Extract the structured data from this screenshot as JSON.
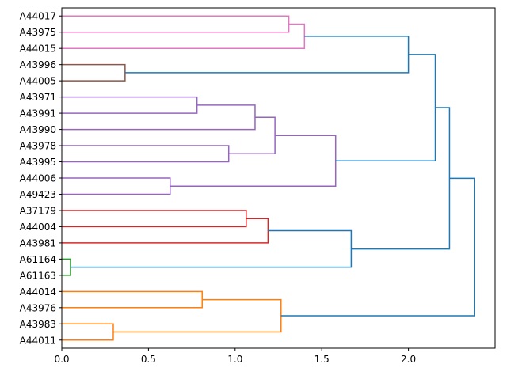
{
  "chart_data": {
    "type": "dendrogram",
    "title": "",
    "xlabel": "",
    "ylabel": "",
    "orientation": "left",
    "xlim": [
      0,
      2.5
    ],
    "xticks": [
      0.0,
      0.5,
      1.0,
      1.5,
      2.0
    ],
    "xtick_labels": [
      "0.0",
      "0.5",
      "1.0",
      "1.5",
      "2.0"
    ],
    "leaves": [
      "A44017",
      "A43975",
      "A44015",
      "A43996",
      "A44005",
      "A43971",
      "A43991",
      "A43990",
      "A43978",
      "A43995",
      "A44006",
      "A49423",
      "A37179",
      "A44004",
      "A43981",
      "A61164",
      "A61163",
      "A44014",
      "A43976",
      "A43983",
      "A44011"
    ],
    "colors": {
      "pink": "#e377c2",
      "brown": "#8c564b",
      "purple": "#9467bd",
      "red": "#d62728",
      "green": "#2ca02c",
      "orange": "#ff7f0e",
      "blue": "#1f77b4"
    },
    "merges": [
      {
        "id": "n1",
        "left": "A44017",
        "right": "A43975",
        "height": 1.31,
        "color": "pink"
      },
      {
        "id": "n2",
        "left": "n1",
        "right": "A44015",
        "height": 1.4,
        "color": "pink"
      },
      {
        "id": "n3",
        "left": "A43996",
        "right": "A44005",
        "height": 0.365,
        "color": "brown"
      },
      {
        "id": "n4",
        "left": "n2",
        "right": "n3",
        "height": 2.0,
        "color": "blue"
      },
      {
        "id": "n5",
        "left": "A43971",
        "right": "A43991",
        "height": 0.78,
        "color": "purple"
      },
      {
        "id": "n6",
        "left": "n5",
        "right": "A43990",
        "height": 1.115,
        "color": "purple"
      },
      {
        "id": "n7",
        "left": "A43978",
        "right": "A43995",
        "height": 0.963,
        "color": "purple"
      },
      {
        "id": "n8",
        "left": "n6",
        "right": "n7",
        "height": 1.23,
        "color": "purple"
      },
      {
        "id": "n9",
        "left": "A44006",
        "right": "A49423",
        "height": 0.625,
        "color": "purple"
      },
      {
        "id": "n10",
        "left": "n8",
        "right": "n9",
        "height": 1.58,
        "color": "purple"
      },
      {
        "id": "n11",
        "left": "n4",
        "right": "n10",
        "height": 2.155,
        "color": "blue"
      },
      {
        "id": "n12",
        "left": "A37179",
        "right": "A44004",
        "height": 1.064,
        "color": "red"
      },
      {
        "id": "n13",
        "left": "n12",
        "right": "A43981",
        "height": 1.19,
        "color": "red"
      },
      {
        "id": "n14",
        "left": "A61164",
        "right": "A61163",
        "height": 0.05,
        "color": "green"
      },
      {
        "id": "n15",
        "left": "n13",
        "right": "n14",
        "height": 1.67,
        "color": "blue"
      },
      {
        "id": "n16",
        "left": "n11",
        "right": "n15",
        "height": 2.237,
        "color": "blue"
      },
      {
        "id": "n17",
        "left": "A44014",
        "right": "A43976",
        "height": 0.81,
        "color": "orange"
      },
      {
        "id": "n18",
        "left": "A43983",
        "right": "A44011",
        "height": 0.297,
        "color": "orange"
      },
      {
        "id": "n19",
        "left": "n17",
        "right": "n18",
        "height": 1.265,
        "color": "orange"
      },
      {
        "id": "n20",
        "left": "n16",
        "right": "n19",
        "height": 2.38,
        "color": "blue"
      }
    ]
  }
}
